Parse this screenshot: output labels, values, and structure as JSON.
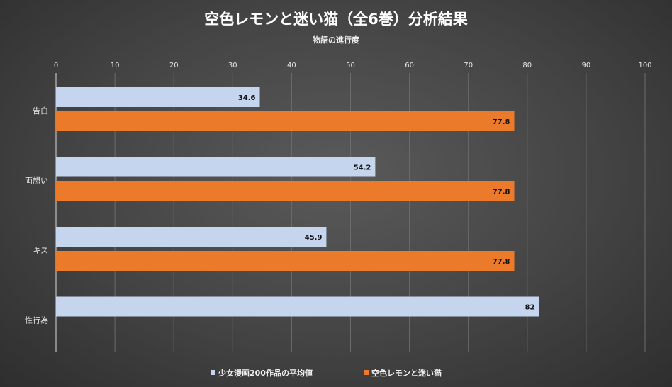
{
  "chart_data": {
    "type": "bar",
    "orientation": "horizontal",
    "title": "空色レモンと迷い猫（全6巻）分析結果",
    "subtitle": "物語の進行度",
    "categories": [
      "告白",
      "両想い",
      "キス",
      "性行為"
    ],
    "series": [
      {
        "name": "少女漫画200作品の平均値",
        "values": [
          34.6,
          54.2,
          45.9,
          82
        ],
        "color": "#c5d5ee"
      },
      {
        "name": "空色レモンと迷い猫",
        "values": [
          77.8,
          77.8,
          77.8,
          null
        ],
        "color": "#ec7a2b"
      }
    ],
    "data_labels": [
      [
        "34.6",
        "54.2",
        "45.9",
        "82"
      ],
      [
        "77.8",
        "77.8",
        "77.8",
        ""
      ]
    ],
    "xlim": [
      0,
      100
    ],
    "xticks": [
      "0",
      "10",
      "20",
      "30",
      "40",
      "50",
      "60",
      "70",
      "80",
      "90",
      "100"
    ],
    "x_axis_position": "top",
    "grid": true,
    "legend_position": "bottom"
  }
}
